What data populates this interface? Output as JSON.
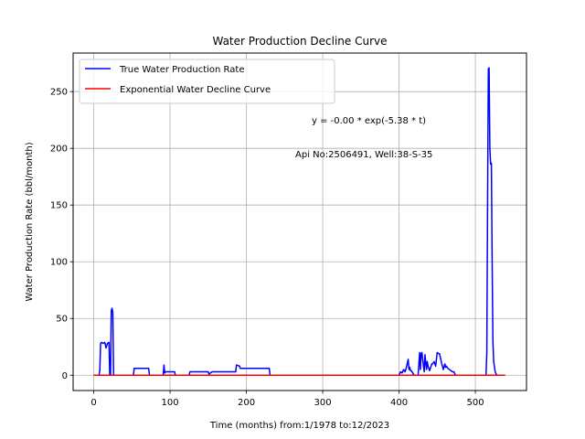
{
  "chart_data": {
    "type": "line",
    "title": "Water Production Decline Curve",
    "xlabel": "Time (months) from:1/1978 to:12/2023",
    "ylabel": "Water Production Rate (bbl/month)",
    "xlim": [
      -27,
      567
    ],
    "ylim": [
      -13.5,
      284
    ],
    "x_ticks": [
      0,
      100,
      200,
      300,
      400,
      500
    ],
    "y_ticks": [
      0,
      50,
      100,
      150,
      200,
      250
    ],
    "grid": true,
    "legend_position": "top-left",
    "annotations": [
      "y = -0.00 * exp(-5.38 * t)",
      "Api No:2506491, Well:38-S-35"
    ],
    "series": [
      {
        "name": "True Water Production Rate",
        "color": "#0000ff",
        "x": [
          0,
          7,
          8,
          9,
          10,
          12,
          14,
          15,
          16,
          18,
          20,
          21,
          22,
          23,
          24,
          25,
          26,
          27,
          28,
          52,
          53,
          58,
          59,
          72,
          73,
          91,
          92,
          93,
          94,
          95,
          106,
          107,
          125,
          126,
          150,
          151,
          155,
          156,
          180,
          181,
          186,
          187,
          191,
          192,
          197,
          198,
          230,
          231,
          400,
          402,
          404,
          406,
          408,
          410,
          412,
          413,
          414,
          415,
          416,
          418,
          420,
          425,
          427,
          428,
          429,
          430,
          432,
          433,
          434,
          436,
          437,
          438,
          440,
          442,
          443,
          444,
          446,
          448,
          450,
          452,
          453,
          454,
          456,
          458,
          460,
          461,
          462,
          464,
          466,
          468,
          470,
          472,
          474,
          476,
          514,
          515,
          516,
          517,
          518,
          519,
          520,
          521,
          522,
          523,
          524,
          526,
          528,
          530,
          539
        ],
        "y": [
          0,
          0,
          5,
          28,
          29,
          28,
          29,
          28,
          24,
          28,
          29,
          0,
          0,
          57,
          59,
          55,
          0,
          0,
          0,
          0,
          6,
          6,
          6,
          6,
          0,
          0,
          9,
          2,
          3,
          3,
          3,
          0,
          0,
          3,
          3,
          1,
          3,
          3,
          3,
          3,
          3,
          9,
          8,
          6,
          6,
          6,
          6,
          0,
          0,
          3,
          2,
          5,
          3,
          8,
          14,
          5,
          7,
          4,
          4,
          2,
          0,
          0,
          20,
          5,
          19,
          20,
          8,
          3,
          18,
          5,
          12,
          8,
          4,
          8,
          10,
          10,
          12,
          8,
          20,
          19,
          19,
          16,
          10,
          5,
          10,
          7,
          8,
          6,
          5,
          4,
          3,
          3,
          0,
          0,
          0,
          20,
          150,
          270,
          271,
          200,
          186,
          187,
          100,
          30,
          12,
          3,
          0,
          0,
          0
        ]
      },
      {
        "name": "Exponential Water Decline Curve",
        "color": "#ff0000",
        "x": [
          0,
          539
        ],
        "y": [
          0,
          0
        ]
      }
    ]
  }
}
